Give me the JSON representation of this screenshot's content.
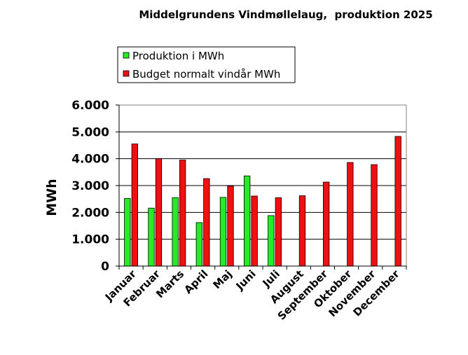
{
  "chart_data": {
    "type": "bar",
    "title": "Middelgrundens Vindmøllelaug,  produktion 2025",
    "xlabel": "",
    "ylabel": "MWh",
    "ylim": [
      0,
      6000
    ],
    "yticks": [
      "0",
      "1.000",
      "2.000",
      "3.000",
      "4.000",
      "5.000",
      "6.000"
    ],
    "grid": true,
    "legend_position": "top-left",
    "categories": [
      "Januar",
      "Februar",
      "Marts",
      "April",
      "Maj",
      "Juni",
      "Juli",
      "August",
      "September",
      "Oktober",
      "November",
      "December"
    ],
    "series": [
      {
        "name": "Produktion i MWh",
        "color": "#22ee22",
        "values": [
          2520,
          2160,
          2550,
          1620,
          2560,
          3360,
          1880,
          null,
          null,
          null,
          null,
          null
        ]
      },
      {
        "name": "Budget normalt vindår MWh",
        "color": "#ee1111",
        "values": [
          4550,
          4000,
          3950,
          3260,
          2980,
          2610,
          2550,
          2620,
          3130,
          3860,
          3780,
          4830
        ]
      }
    ]
  }
}
